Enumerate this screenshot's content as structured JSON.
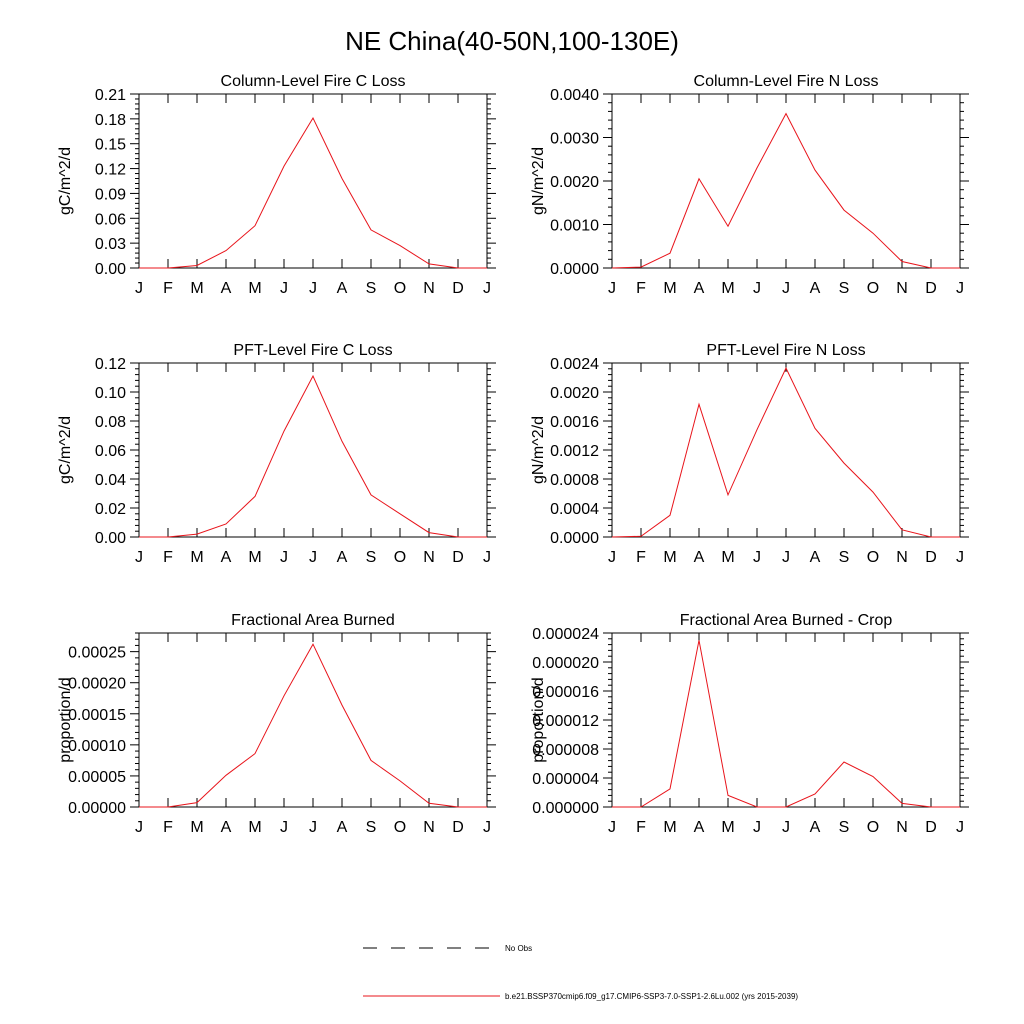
{
  "figure": {
    "title": "NE China(40-50N,100-130E)"
  },
  "colors": {
    "series": "#e8141b",
    "obs": "#000000",
    "axis": "#000000"
  },
  "chart_data": [
    {
      "type": "line",
      "title": "Column-Level Fire C Loss",
      "ylabel": "gC/m^2/d",
      "x": [
        "J",
        "F",
        "M",
        "A",
        "M",
        "J",
        "J",
        "A",
        "S",
        "O",
        "N",
        "D",
        "J"
      ],
      "ylim": [
        0,
        0.21
      ],
      "yticks": [
        "0.00",
        "0.03",
        "0.06",
        "0.09",
        "0.12",
        "0.15",
        "0.18",
        "0.21"
      ],
      "series": [
        {
          "name": "b.e21.BSSP370cmip6.f09_g17.CMIP6-SSP3-7.0-SSP1-2.6Lu.002 (yrs 2015-2039)",
          "values": [
            0.0,
            0.0,
            0.003,
            0.021,
            0.051,
            0.123,
            0.181,
            0.108,
            0.046,
            0.027,
            0.005,
            0.0,
            0.0
          ]
        }
      ]
    },
    {
      "type": "line",
      "title": "Column-Level Fire N Loss",
      "ylabel": "gN/m^2/d",
      "x": [
        "J",
        "F",
        "M",
        "A",
        "M",
        "J",
        "J",
        "A",
        "S",
        "O",
        "N",
        "D",
        "J"
      ],
      "ylim": [
        0,
        0.004
      ],
      "yticks": [
        "0.0000",
        "0.0010",
        "0.0020",
        "0.0030",
        "0.0040"
      ],
      "series": [
        {
          "name": "b.e21.BSSP370cmip6.f09_g17.CMIP6-SSP3-7.0-SSP1-2.6Lu.002 (yrs 2015-2039)",
          "values": [
            0.0,
            2e-05,
            0.00034,
            0.00205,
            0.00096,
            0.0023,
            0.00355,
            0.00225,
            0.00133,
            0.0008,
            0.00015,
            0.0,
            0.0
          ]
        }
      ]
    },
    {
      "type": "line",
      "title": "PFT-Level Fire C Loss",
      "ylabel": "gC/m^2/d",
      "x": [
        "J",
        "F",
        "M",
        "A",
        "M",
        "J",
        "J",
        "A",
        "S",
        "O",
        "N",
        "D",
        "J"
      ],
      "ylim": [
        0,
        0.12
      ],
      "yticks": [
        "0.00",
        "0.02",
        "0.04",
        "0.06",
        "0.08",
        "0.10",
        "0.12"
      ],
      "series": [
        {
          "name": "b.e21.BSSP370cmip6.f09_g17.CMIP6-SSP3-7.0-SSP1-2.6Lu.002 (yrs 2015-2039)",
          "values": [
            0.0,
            0.0,
            0.002,
            0.009,
            0.028,
            0.073,
            0.111,
            0.066,
            0.029,
            0.016,
            0.003,
            0.0,
            0.0
          ]
        }
      ]
    },
    {
      "type": "line",
      "title": "PFT-Level Fire N Loss",
      "ylabel": "gN/m^2/d",
      "x": [
        "J",
        "F",
        "M",
        "A",
        "M",
        "J",
        "J",
        "A",
        "S",
        "O",
        "N",
        "D",
        "J"
      ],
      "ylim": [
        0,
        0.0024
      ],
      "yticks": [
        "0.0000",
        "0.0004",
        "0.0008",
        "0.0012",
        "0.0016",
        "0.0020",
        "0.0024"
      ],
      "series": [
        {
          "name": "b.e21.BSSP370cmip6.f09_g17.CMIP6-SSP3-7.0-SSP1-2.6Lu.002 (yrs 2015-2039)",
          "values": [
            0.0,
            1e-05,
            0.0003,
            0.00183,
            0.00058,
            0.00148,
            0.00233,
            0.0015,
            0.00102,
            0.00062,
            0.0001,
            0.0,
            0.0
          ]
        }
      ]
    },
    {
      "type": "line",
      "title": "Fractional Area Burned",
      "ylabel": "proportion/d",
      "x": [
        "J",
        "F",
        "M",
        "A",
        "M",
        "J",
        "J",
        "A",
        "S",
        "O",
        "N",
        "D",
        "J"
      ],
      "ylim": [
        0,
        0.00028
      ],
      "yticks": [
        "0.00000",
        "0.00005",
        "0.00010",
        "0.00015",
        "0.00020",
        "0.00025"
      ],
      "series": [
        {
          "name": "b.e21.BSSP370cmip6.f09_g17.CMIP6-SSP3-7.0-SSP1-2.6Lu.002 (yrs 2015-2039)",
          "values": [
            0.0,
            0.0,
            7e-06,
            5.1e-05,
            8.6e-05,
            0.000179,
            0.000262,
            0.000164,
            7.5e-05,
            4.2e-05,
            6e-06,
            0.0,
            0.0
          ]
        }
      ]
    },
    {
      "type": "line",
      "title": "Fractional Area Burned - Crop",
      "ylabel": "proportion/d",
      "x": [
        "J",
        "F",
        "M",
        "A",
        "M",
        "J",
        "J",
        "A",
        "S",
        "O",
        "N",
        "D",
        "J"
      ],
      "ylim": [
        0,
        2.4e-05
      ],
      "yticks": [
        "0.000000",
        "0.000004",
        "0.000008",
        "0.000012",
        "0.000016",
        "0.000020",
        "0.000024"
      ],
      "series": [
        {
          "name": "b.e21.BSSP370cmip6.f09_g17.CMIP6-SSP3-7.0-SSP1-2.6Lu.002 (yrs 2015-2039)",
          "values": [
            0.0,
            0.0,
            2.5e-06,
            2.3e-05,
            1.6e-06,
            0.0,
            0.0,
            1.8e-06,
            6.2e-06,
            4.2e-06,
            5e-07,
            0.0,
            0.0
          ]
        }
      ]
    }
  ],
  "legend": {
    "placement": "bottom-center",
    "items": [
      {
        "label": "No Obs",
        "style": "dashed",
        "color": "#000000"
      },
      {
        "label": "b.e21.BSSP370cmip6.f09_g17.CMIP6-SSP3-7.0-SSP1-2.6Lu.002 (yrs 2015-2039)",
        "style": "solid",
        "color": "#e8141b"
      }
    ]
  }
}
